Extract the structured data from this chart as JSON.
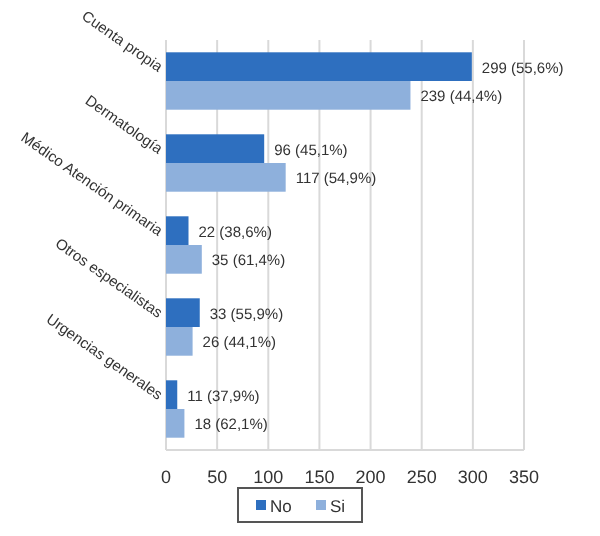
{
  "chart_data": {
    "type": "bar",
    "orientation": "horizontal",
    "categories": [
      "Cuenta propia",
      "Dermatología",
      "Médico Atención primaria",
      "Otros especialistas",
      "Urgencias generales"
    ],
    "series": [
      {
        "name": "No",
        "color": "#2e6fbf",
        "values": [
          299,
          96,
          22,
          33,
          11
        ],
        "value_labels": [
          "299 (55,6%)",
          "96 (45,1%)",
          "22 (38,6%)",
          "33 (55,9%)",
          "11 (37,9%)"
        ]
      },
      {
        "name": "Si",
        "color": "#8eb0dc",
        "values": [
          239,
          117,
          35,
          26,
          18
        ],
        "value_labels": [
          "239 (44,4%)",
          "117 (54,9%)",
          "35 (61,4%)",
          "26 (44,1%)",
          "18 (62,1%)"
        ]
      }
    ],
    "xlim": [
      0,
      350
    ],
    "xticks": [
      0,
      50,
      100,
      150,
      200,
      250,
      300,
      350
    ],
    "grid": "x",
    "legend": "bottom"
  }
}
